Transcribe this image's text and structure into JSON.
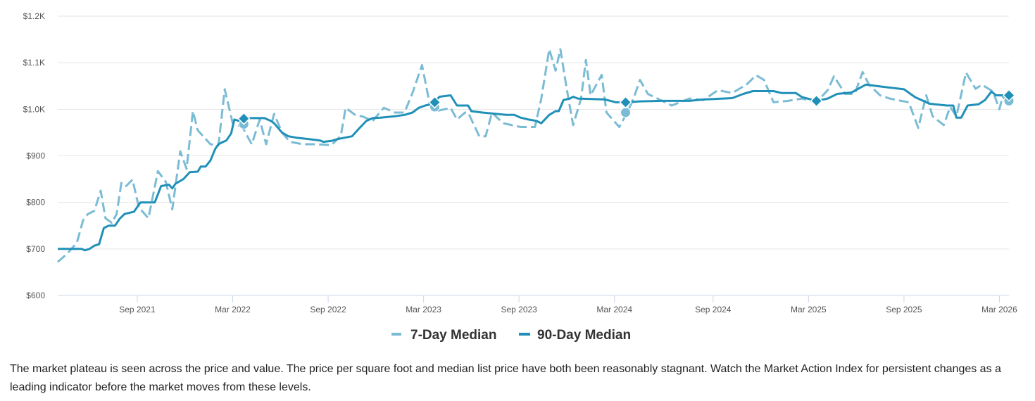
{
  "chart_data": {
    "type": "line",
    "title": "",
    "xlabel": "",
    "ylabel": "",
    "x_units": "months since Apr 2021",
    "xlim": [
      0,
      59.8
    ],
    "ylim": [
      600,
      1200
    ],
    "grid": true,
    "legend_position": "bottom-center",
    "y_ticks": [
      {
        "value": 600,
        "label": "$600"
      },
      {
        "value": 700,
        "label": "$700"
      },
      {
        "value": 800,
        "label": "$800"
      },
      {
        "value": 900,
        "label": "$900"
      },
      {
        "value": 1000,
        "label": "$1.0K"
      },
      {
        "value": 1100,
        "label": "$1.1K"
      },
      {
        "value": 1200,
        "label": "$1.2K"
      }
    ],
    "x_ticks": [
      {
        "value": 5,
        "label": "Sep 2021"
      },
      {
        "value": 11,
        "label": "Mar 2022"
      },
      {
        "value": 17,
        "label": "Sep 2022"
      },
      {
        "value": 23,
        "label": "Mar 2023"
      },
      {
        "value": 29,
        "label": "Sep 2023"
      },
      {
        "value": 35,
        "label": "Mar 2024"
      },
      {
        "value": 41.2,
        "label": "Sep 2024"
      },
      {
        "value": 47.2,
        "label": "Mar 2025"
      },
      {
        "value": 53.2,
        "label": "Sep 2025"
      },
      {
        "value": 59.2,
        "label": "Mar 2026"
      }
    ],
    "series": [
      {
        "name": "7-Day Median",
        "color": "#7bbcd5",
        "style": "dashed",
        "marker": "circle",
        "points": [
          [
            0,
            672
          ],
          [
            0.6,
            690
          ],
          [
            1.2,
            713
          ],
          [
            1.6,
            762
          ],
          [
            1.9,
            775
          ],
          [
            2.3,
            782
          ],
          [
            2.7,
            825
          ],
          [
            3.0,
            766
          ],
          [
            3.4,
            756
          ],
          [
            3.7,
            775
          ],
          [
            4.0,
            842
          ],
          [
            4.3,
            835
          ],
          [
            4.7,
            849
          ],
          [
            5.1,
            789
          ],
          [
            5.7,
            766
          ],
          [
            6.3,
            867
          ],
          [
            6.8,
            844
          ],
          [
            7.2,
            785
          ],
          [
            7.7,
            910
          ],
          [
            8.1,
            872
          ],
          [
            8.5,
            996
          ],
          [
            8.8,
            955
          ],
          [
            9.2,
            940
          ],
          [
            9.6,
            925
          ],
          [
            10.1,
            922
          ],
          [
            10.5,
            1043
          ],
          [
            11.0,
            970
          ],
          [
            11.6,
            962
          ],
          [
            12.2,
            925
          ],
          [
            12.7,
            978
          ],
          [
            13.1,
            925
          ],
          [
            13.6,
            990
          ],
          [
            14.1,
            950
          ],
          [
            14.6,
            930
          ],
          [
            15.4,
            925
          ],
          [
            16.3,
            925
          ],
          [
            17.2,
            923
          ],
          [
            17.8,
            943
          ],
          [
            18.1,
            1003
          ],
          [
            18.7,
            988
          ],
          [
            19.2,
            984
          ],
          [
            19.8,
            975
          ],
          [
            20.5,
            1003
          ],
          [
            21.2,
            993
          ],
          [
            21.8,
            993
          ],
          [
            22.3,
            1035
          ],
          [
            22.9,
            1095
          ],
          [
            23.4,
            1008
          ],
          [
            23.8,
            996
          ],
          [
            24.7,
            1003
          ],
          [
            25.1,
            978
          ],
          [
            25.6,
            993
          ],
          [
            25.8,
            993
          ],
          [
            26.5,
            942
          ],
          [
            26.9,
            942
          ],
          [
            27.3,
            993
          ],
          [
            28.0,
            970
          ],
          [
            29.1,
            962
          ],
          [
            30.0,
            962
          ],
          [
            30.4,
            1023
          ],
          [
            30.9,
            1129
          ],
          [
            31.3,
            1083
          ],
          [
            31.6,
            1129
          ],
          [
            32.0,
            1044
          ],
          [
            32.4,
            966
          ],
          [
            32.9,
            1023
          ],
          [
            33.2,
            1106
          ],
          [
            33.5,
            1030
          ],
          [
            34.2,
            1074
          ],
          [
            34.5,
            993
          ],
          [
            35.3,
            962
          ],
          [
            35.8,
            993
          ],
          [
            36.2,
            1023
          ],
          [
            36.6,
            1063
          ],
          [
            37.1,
            1033
          ],
          [
            37.7,
            1023
          ],
          [
            38.6,
            1008
          ],
          [
            39.7,
            1023
          ],
          [
            40.6,
            1020
          ],
          [
            41.5,
            1041
          ],
          [
            42.4,
            1035
          ],
          [
            43.3,
            1053
          ],
          [
            43.9,
            1073
          ],
          [
            44.4,
            1063
          ],
          [
            45.0,
            1015
          ],
          [
            45.9,
            1018
          ],
          [
            46.8,
            1023
          ],
          [
            47.7,
            1015
          ],
          [
            48.4,
            1041
          ],
          [
            48.8,
            1071
          ],
          [
            49.5,
            1033
          ],
          [
            50.1,
            1033
          ],
          [
            50.6,
            1080
          ],
          [
            51.0,
            1053
          ],
          [
            51.7,
            1030
          ],
          [
            52.3,
            1023
          ],
          [
            53.5,
            1015
          ],
          [
            54.1,
            960
          ],
          [
            54.6,
            1030
          ],
          [
            55.0,
            985
          ],
          [
            55.7,
            966
          ],
          [
            56.1,
            1005
          ],
          [
            56.5,
            985
          ],
          [
            57.1,
            1079
          ],
          [
            57.7,
            1044
          ],
          [
            58.1,
            1053
          ],
          [
            58.8,
            1038
          ],
          [
            59.2,
            1000
          ],
          [
            59.4,
            1027
          ],
          [
            59.8,
            1015
          ]
        ],
        "markers": [
          [
            11.7,
            968
          ],
          [
            23.7,
            1005
          ],
          [
            35.7,
            993
          ],
          [
            59.8,
            1018
          ]
        ]
      },
      {
        "name": "90-Day Median",
        "color": "#2090b8",
        "style": "solid",
        "marker": "diamond",
        "points": [
          [
            0,
            700
          ],
          [
            1.5,
            700
          ],
          [
            1.7,
            697
          ],
          [
            2.0,
            700
          ],
          [
            2.3,
            707
          ],
          [
            2.6,
            710
          ],
          [
            2.9,
            745
          ],
          [
            3.2,
            750
          ],
          [
            3.6,
            750
          ],
          [
            3.9,
            765
          ],
          [
            4.2,
            775
          ],
          [
            4.8,
            780
          ],
          [
            5.1,
            795
          ],
          [
            5.2,
            800
          ],
          [
            6.1,
            800
          ],
          [
            6.5,
            835
          ],
          [
            7.0,
            838
          ],
          [
            7.2,
            830
          ],
          [
            7.4,
            840
          ],
          [
            7.9,
            850
          ],
          [
            8.3,
            865
          ],
          [
            8.8,
            866
          ],
          [
            9.0,
            877
          ],
          [
            9.3,
            877
          ],
          [
            9.6,
            890
          ],
          [
            9.9,
            915
          ],
          [
            10.1,
            925
          ],
          [
            10.4,
            930
          ],
          [
            10.6,
            933
          ],
          [
            10.9,
            948
          ],
          [
            11.1,
            978
          ],
          [
            11.4,
            975
          ],
          [
            12.1,
            981
          ],
          [
            13.0,
            981
          ],
          [
            13.4,
            975
          ],
          [
            13.6,
            970
          ],
          [
            14.1,
            950
          ],
          [
            14.5,
            942
          ],
          [
            15.0,
            939
          ],
          [
            15.8,
            936
          ],
          [
            16.5,
            933
          ],
          [
            16.7,
            930
          ],
          [
            17.2,
            932
          ],
          [
            17.6,
            936
          ],
          [
            18.5,
            942
          ],
          [
            18.9,
            957
          ],
          [
            19.4,
            975
          ],
          [
            19.8,
            981
          ],
          [
            20.3,
            982
          ],
          [
            21.2,
            985
          ],
          [
            21.8,
            988
          ],
          [
            22.3,
            993
          ],
          [
            22.7,
            1003
          ],
          [
            23.1,
            1008
          ],
          [
            23.6,
            1012
          ],
          [
            24.0,
            1027
          ],
          [
            24.7,
            1030
          ],
          [
            25.1,
            1008
          ],
          [
            25.8,
            1008
          ],
          [
            26.0,
            996
          ],
          [
            26.7,
            993
          ],
          [
            28.2,
            988
          ],
          [
            28.7,
            988
          ],
          [
            29.1,
            982
          ],
          [
            29.6,
            978
          ],
          [
            30.1,
            975
          ],
          [
            30.4,
            970
          ],
          [
            30.9,
            988
          ],
          [
            31.3,
            996
          ],
          [
            31.5,
            996
          ],
          [
            31.8,
            1020
          ],
          [
            32.2,
            1023
          ],
          [
            32.4,
            1027
          ],
          [
            32.7,
            1023
          ],
          [
            34.4,
            1021
          ],
          [
            35.1,
            1015
          ],
          [
            35.8,
            1015
          ],
          [
            36.6,
            1017
          ],
          [
            38.0,
            1018
          ],
          [
            39.7,
            1018
          ],
          [
            40.6,
            1021
          ],
          [
            42.4,
            1024
          ],
          [
            43.1,
            1033
          ],
          [
            43.7,
            1039
          ],
          [
            45.0,
            1039
          ],
          [
            45.5,
            1035
          ],
          [
            46.4,
            1035
          ],
          [
            46.8,
            1026
          ],
          [
            47.7,
            1018
          ],
          [
            48.4,
            1023
          ],
          [
            49.0,
            1033
          ],
          [
            49.9,
            1036
          ],
          [
            50.8,
            1053
          ],
          [
            51.7,
            1049
          ],
          [
            53.2,
            1043
          ],
          [
            53.9,
            1026
          ],
          [
            54.8,
            1012
          ],
          [
            55.9,
            1008
          ],
          [
            56.3,
            1008
          ],
          [
            56.5,
            982
          ],
          [
            56.8,
            982
          ],
          [
            57.2,
            1008
          ],
          [
            57.9,
            1011
          ],
          [
            58.3,
            1020
          ],
          [
            58.7,
            1038
          ],
          [
            59.0,
            1030
          ],
          [
            59.8,
            1030
          ]
        ],
        "markers": [
          [
            11.7,
            980
          ],
          [
            23.7,
            1015
          ],
          [
            35.7,
            1015
          ],
          [
            47.7,
            1018
          ],
          [
            59.8,
            1030
          ]
        ]
      }
    ]
  },
  "description": "The market plateau is seen across the price and value. The price per square foot and median list price have both been reasonably stagnant. Watch the Market Action Index for persistent changes as a leading indicator before the market moves from these levels."
}
